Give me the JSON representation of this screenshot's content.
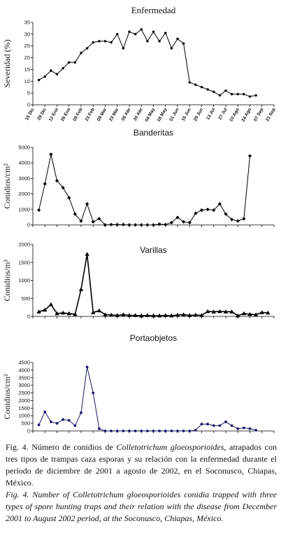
{
  "figure": {
    "date_labels": [
      "15 Dic",
      "29 Dic",
      "12 Ene",
      "26 Ene",
      "09 Feb",
      "23 Feb",
      "09 Mar",
      "23 Mar",
      "06 Abr",
      "20 Abr",
      "04 May",
      "18 May",
      "01 Jun",
      "15 Jun",
      "29 Jun",
      "13 Jul",
      "27 Jul",
      "10 Ago",
      "24 Ago",
      "07 Sep",
      "21 Sep"
    ]
  },
  "chart_data": [
    {
      "type": "line",
      "title": "Enfermedad",
      "ylabel": "Severidad (%)",
      "ylim": [
        0,
        35
      ],
      "yticks": [
        0,
        5,
        10,
        15,
        20,
        25,
        30,
        35
      ],
      "x_tick_labels_shown": true,
      "marker": "dot",
      "series": [
        {
          "values": [
            [
              0.5,
              10.5
            ],
            [
              1.0,
              12.0
            ],
            [
              1.5,
              14.5
            ],
            [
              2.0,
              13.0
            ],
            [
              2.5,
              15.5
            ],
            [
              3.0,
              18.0
            ],
            [
              3.5,
              18.0
            ],
            [
              4.0,
              22.0
            ],
            [
              4.5,
              24.0
            ],
            [
              5.0,
              26.5
            ],
            [
              5.5,
              27.0
            ],
            [
              6.0,
              27.0
            ],
            [
              6.5,
              26.5
            ],
            [
              7.0,
              30.0
            ],
            [
              7.5,
              24.0
            ],
            [
              8.0,
              31.0
            ],
            [
              8.5,
              30.0
            ],
            [
              9.0,
              32.0
            ],
            [
              9.5,
              27.0
            ],
            [
              10.0,
              31.0
            ],
            [
              10.5,
              27.0
            ],
            [
              11.0,
              30.5
            ],
            [
              11.5,
              24.0
            ],
            [
              12.0,
              28.0
            ],
            [
              12.5,
              26.0
            ],
            [
              13.0,
              9.5
            ],
            [
              13.5,
              8.5
            ],
            [
              14.0,
              7.5
            ],
            [
              14.5,
              6.5
            ],
            [
              15.0,
              5.5
            ],
            [
              15.5,
              4.0
            ],
            [
              16.0,
              6.0
            ],
            [
              16.5,
              4.5
            ],
            [
              17.0,
              4.5
            ],
            [
              17.5,
              4.5
            ],
            [
              18.0,
              3.5
            ],
            [
              18.5,
              4.0
            ]
          ]
        }
      ]
    },
    {
      "type": "line",
      "title": "Banderitas",
      "ylabel": "Conidios/cm²",
      "ylim": [
        0,
        5000
      ],
      "yticks": [
        0,
        1000,
        2000,
        3000,
        4000,
        5000
      ],
      "x_tick_labels_shown": false,
      "marker": "diamond",
      "series": [
        {
          "values": [
            [
              0.5,
              950
            ],
            [
              1.0,
              2650
            ],
            [
              1.5,
              4550
            ],
            [
              2.0,
              2850
            ],
            [
              2.5,
              2400
            ],
            [
              3.0,
              1750
            ],
            [
              3.5,
              700
            ],
            [
              4.0,
              250
            ],
            [
              4.5,
              1350
            ],
            [
              5.0,
              200
            ],
            [
              5.5,
              400
            ],
            [
              6.0,
              0
            ],
            [
              6.5,
              20
            ],
            [
              7.0,
              20
            ],
            [
              7.5,
              20
            ],
            [
              8.0,
              0
            ],
            [
              8.5,
              0
            ],
            [
              9.0,
              0
            ],
            [
              9.5,
              0
            ],
            [
              10.0,
              0
            ],
            [
              10.5,
              50
            ],
            [
              11.0,
              20
            ],
            [
              11.5,
              150
            ],
            [
              12.0,
              480
            ],
            [
              12.5,
              200
            ],
            [
              13.0,
              150
            ],
            [
              13.5,
              750
            ],
            [
              14.0,
              950
            ],
            [
              14.5,
              1000
            ],
            [
              15.0,
              950
            ],
            [
              15.5,
              1350
            ],
            [
              16.0,
              700
            ],
            [
              16.5,
              350
            ],
            [
              17.0,
              250
            ],
            [
              17.5,
              400
            ],
            [
              18.0,
              4450
            ]
          ]
        }
      ]
    },
    {
      "type": "line",
      "title": "Varillas",
      "ylabel": "Conidios/m³",
      "ylim": [
        0,
        2000
      ],
      "yticks": [
        0,
        500,
        1000,
        1500,
        2000
      ],
      "x_tick_labels_shown": false,
      "marker": "triangle",
      "series": [
        {
          "values": [
            [
              0.5,
              130
            ],
            [
              1.0,
              180
            ],
            [
              1.5,
              330
            ],
            [
              2.0,
              80
            ],
            [
              2.5,
              100
            ],
            [
              3.0,
              80
            ],
            [
              3.5,
              60
            ],
            [
              4.0,
              750
            ],
            [
              4.5,
              1730
            ],
            [
              5.0,
              110
            ],
            [
              5.5,
              160
            ],
            [
              6.0,
              50
            ],
            [
              6.5,
              40
            ],
            [
              7.0,
              30
            ],
            [
              7.5,
              50
            ],
            [
              8.0,
              30
            ],
            [
              8.5,
              30
            ],
            [
              9.0,
              20
            ],
            [
              9.5,
              30
            ],
            [
              10.0,
              20
            ],
            [
              10.5,
              20
            ],
            [
              11.0,
              30
            ],
            [
              11.5,
              20
            ],
            [
              12.0,
              40
            ],
            [
              12.5,
              50
            ],
            [
              13.0,
              30
            ],
            [
              13.5,
              40
            ],
            [
              14.0,
              30
            ],
            [
              14.5,
              140
            ],
            [
              15.0,
              130
            ],
            [
              15.5,
              140
            ],
            [
              16.0,
              130
            ],
            [
              16.5,
              130
            ],
            [
              17.0,
              20
            ],
            [
              17.5,
              80
            ],
            [
              18.0,
              60
            ],
            [
              18.5,
              50
            ],
            [
              19.0,
              110
            ],
            [
              19.5,
              100
            ]
          ]
        }
      ]
    },
    {
      "type": "line",
      "title": "Portaobjetos",
      "ylabel": "Conidios/cm²",
      "ylim": [
        0,
        4500
      ],
      "yticks": [
        0,
        500,
        1000,
        1500,
        2000,
        2500,
        3000,
        3500,
        4000,
        4500
      ],
      "x_tick_labels_shown": false,
      "marker": "dot",
      "series": [
        {
          "values": [
            [
              0.5,
              400
            ],
            [
              1.0,
              1250
            ],
            [
              1.5,
              600
            ],
            [
              2.0,
              500
            ],
            [
              2.5,
              750
            ],
            [
              3.0,
              700
            ],
            [
              3.5,
              350
            ],
            [
              4.0,
              1200
            ],
            [
              4.5,
              4200
            ],
            [
              5.0,
              2500
            ],
            [
              5.5,
              150
            ],
            [
              6.0,
              0
            ],
            [
              6.5,
              0
            ],
            [
              7.0,
              0
            ],
            [
              7.5,
              0
            ],
            [
              8.0,
              0
            ],
            [
              8.5,
              0
            ],
            [
              9.0,
              0
            ],
            [
              9.5,
              0
            ],
            [
              10.0,
              0
            ],
            [
              10.5,
              0
            ],
            [
              11.0,
              0
            ],
            [
              11.5,
              0
            ],
            [
              12.0,
              0
            ],
            [
              12.5,
              0
            ],
            [
              13.0,
              0
            ],
            [
              13.5,
              50
            ],
            [
              14.0,
              450
            ],
            [
              14.5,
              450
            ],
            [
              15.0,
              350
            ],
            [
              15.5,
              350
            ],
            [
              16.0,
              600
            ],
            [
              16.5,
              350
            ],
            [
              17.0,
              150
            ],
            [
              17.5,
              200
            ],
            [
              18.0,
              150
            ],
            [
              18.5,
              50
            ]
          ]
        }
      ]
    }
  ],
  "caption": {
    "es_pre": "Fig. 4. Número de conidios de ",
    "es_species": "Colletotrichum gloeosporioides",
    "es_post": ", atrapados con tres tipos de trampas caza esporas y su relación con la enfermedad durante el período de diciembre de 2001 a agosto de 2002, en el Soconusco, Chiapas, México.",
    "en": "Fig. 4. Number of Colletotrichum gloeosporioides conidia trapped with three types of spore hunting traps and their relation with the disease from December 2001 to August 2002 period, at the Soconusco, Chiapas, México."
  }
}
